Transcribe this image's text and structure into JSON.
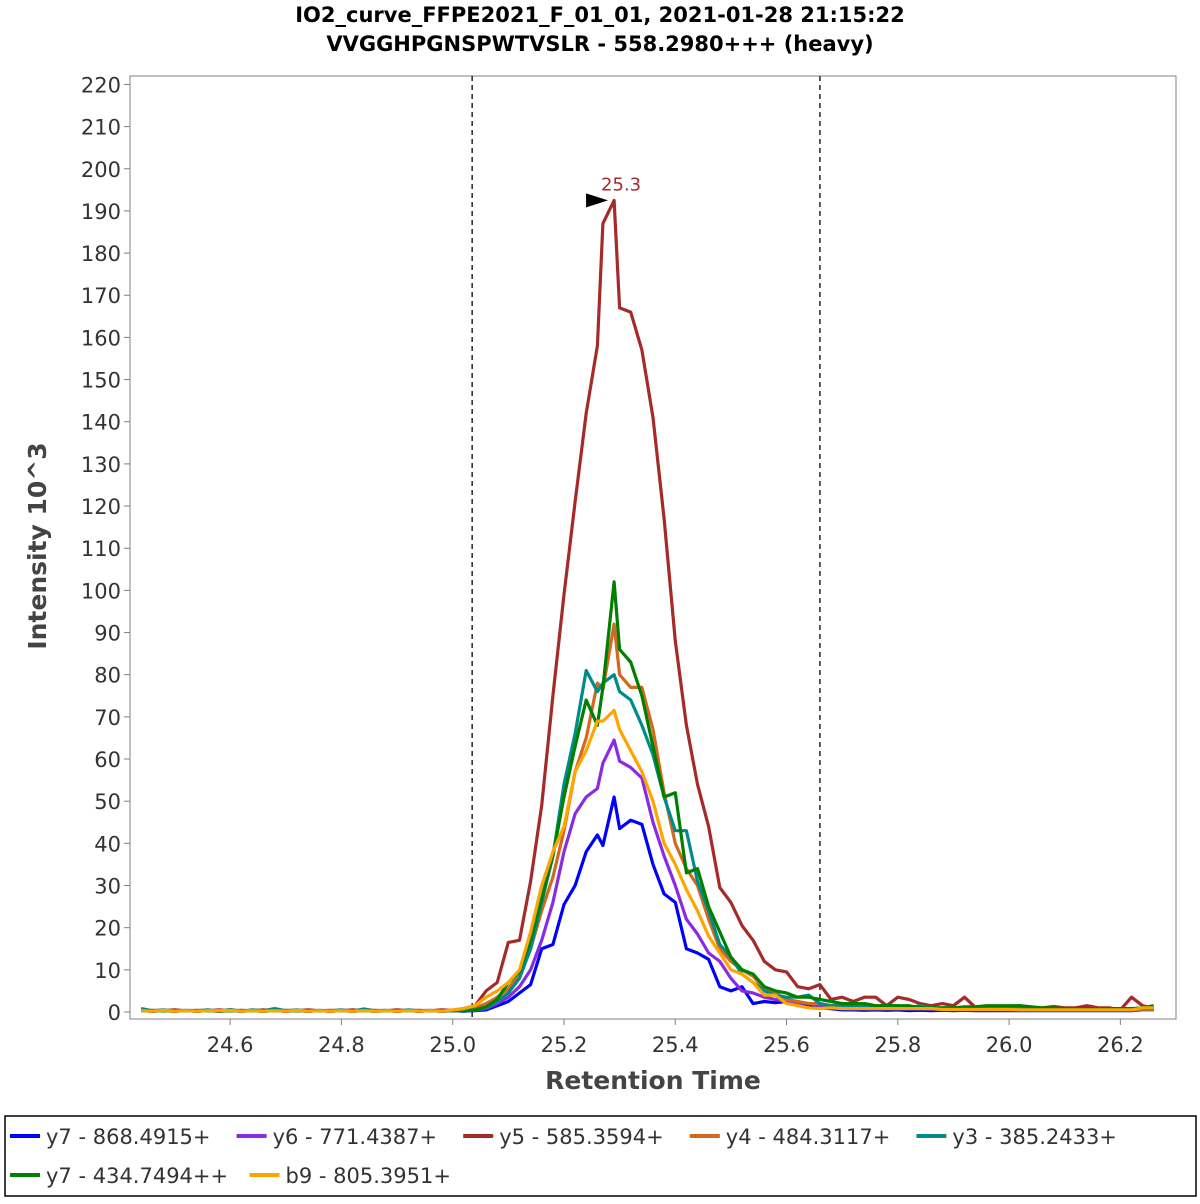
{
  "chart_data": {
    "type": "line",
    "title": "IO2_curve_FFPE2021_F_01_01, 2021-01-28 21:15:22",
    "subtitle": "VVGGHPGNSPWTVSLR - 558.2980+++ (heavy)",
    "xlabel": "Retention Time",
    "ylabel": "Intensity 10^3",
    "xlim": [
      24.42,
      26.3
    ],
    "ylim": [
      0,
      222
    ],
    "x_ticks": [
      "24.6",
      "24.8",
      "25.0",
      "25.2",
      "25.4",
      "25.6",
      "25.8",
      "26.0",
      "26.2"
    ],
    "y_ticks": [
      "0",
      "10",
      "20",
      "30",
      "40",
      "50",
      "60",
      "70",
      "80",
      "90",
      "100",
      "110",
      "120",
      "130",
      "140",
      "150",
      "160",
      "170",
      "180",
      "190",
      "200",
      "210",
      "220"
    ],
    "grid": false,
    "legend_position": "bottom",
    "integration_bounds": [
      25.035,
      25.66
    ],
    "peak_annotation": {
      "label": "25.3",
      "x": 25.29,
      "y": 192.5,
      "color": "#a52a2a"
    },
    "x": [
      24.44,
      24.46,
      24.48,
      24.5,
      24.52,
      24.54,
      24.56,
      24.58,
      24.6,
      24.62,
      24.64,
      24.66,
      24.68,
      24.7,
      24.72,
      24.74,
      24.76,
      24.78,
      24.8,
      24.82,
      24.84,
      24.86,
      24.88,
      24.9,
      24.92,
      24.94,
      24.96,
      24.98,
      25.0,
      25.02,
      25.04,
      25.06,
      25.08,
      25.1,
      25.12,
      25.14,
      25.16,
      25.18,
      25.2,
      25.22,
      25.24,
      25.26,
      25.27,
      25.29,
      25.3,
      25.32,
      25.34,
      25.36,
      25.38,
      25.4,
      25.42,
      25.44,
      25.46,
      25.48,
      25.5,
      25.52,
      25.54,
      25.56,
      25.58,
      25.6,
      25.62,
      25.64,
      25.66,
      25.68,
      25.7,
      25.72,
      25.74,
      25.76,
      25.78,
      25.8,
      25.82,
      25.84,
      25.86,
      25.88,
      25.9,
      25.92,
      25.94,
      25.96,
      25.98,
      26.0,
      26.02,
      26.04,
      26.06,
      26.08,
      26.1,
      26.12,
      26.14,
      26.16,
      26.18,
      26.2,
      26.22,
      26.24,
      26.26
    ],
    "series": [
      {
        "name": "y7 - 868.4915+",
        "color": "#0000ff",
        "values": [
          0.3,
          0.2,
          0.3,
          0.2,
          0.3,
          0.2,
          0.3,
          0.2,
          0.3,
          0.2,
          0.3,
          0.2,
          0.3,
          0.2,
          0.3,
          0.2,
          0.3,
          0.2,
          0.3,
          0.2,
          0.3,
          0.2,
          0.3,
          0.2,
          0.3,
          0.2,
          0.3,
          0.2,
          0.3,
          0.2,
          0.3,
          0.5,
          1.5,
          2.5,
          4.5,
          6.5,
          15,
          16,
          25.5,
          30,
          38,
          42,
          39.5,
          51,
          43.5,
          45.5,
          44.5,
          35,
          28,
          26,
          15,
          14,
          12.5,
          6,
          5,
          6,
          2,
          2.5,
          2.2,
          2.5,
          1.5,
          1.5,
          1,
          0.8,
          0.5,
          0.5,
          0.4,
          0.5,
          0.4,
          0.5,
          0.3,
          0.4,
          0.3,
          0.4,
          0.3,
          0.4,
          0.3,
          0.3,
          0.3,
          0.3,
          0.3,
          0.3,
          0.3,
          0.3,
          0.3,
          0.3,
          0.3,
          0.3,
          0.3,
          0.3,
          0.3,
          0.5,
          0.5
        ]
      },
      {
        "name": "y6 - 771.4387+",
        "color": "#8a2be2",
        "values": [
          0.3,
          0.2,
          0.3,
          0.2,
          0.3,
          0.2,
          0.3,
          0.2,
          0.3,
          0.2,
          0.3,
          0.2,
          0.3,
          0.2,
          0.3,
          0.2,
          0.3,
          0.2,
          0.3,
          0.2,
          0.3,
          0.2,
          0.3,
          0.2,
          0.3,
          0.2,
          0.3,
          0.2,
          0.3,
          0.2,
          0.4,
          0.8,
          2,
          3.5,
          6,
          10,
          17,
          26,
          38,
          47,
          51,
          53,
          59,
          64.5,
          59.5,
          58,
          55.5,
          45,
          37,
          30,
          22,
          18.5,
          14,
          12,
          8,
          5,
          4.5,
          3.5,
          3,
          2.5,
          2.2,
          2,
          1.5,
          1.5,
          1.2,
          1,
          1,
          1,
          1.2,
          1,
          1,
          1.2,
          1,
          0.8,
          0.8,
          1,
          0.8,
          0.8,
          0.8,
          0.8,
          0.6,
          0.6,
          0.6,
          0.6,
          0.5,
          0.5,
          0.5,
          0.5,
          0.5,
          0.5,
          0.5,
          0.6,
          0.5
        ]
      },
      {
        "name": "y5 - 585.3594+",
        "color": "#a52a2a",
        "values": [
          0.3,
          0.4,
          0.3,
          0.5,
          0.3,
          0.4,
          0.3,
          0.5,
          0.3,
          0.4,
          0.3,
          0.5,
          0.3,
          0.4,
          0.3,
          0.5,
          0.3,
          0.4,
          0.3,
          0.5,
          0.3,
          0.4,
          0.3,
          0.5,
          0.3,
          0.4,
          0.3,
          0.5,
          0.4,
          0.8,
          1.5,
          5,
          7,
          16.5,
          17,
          31,
          49,
          75,
          99,
          121,
          142,
          158,
          187,
          192.5,
          167,
          166,
          157,
          141,
          117,
          88,
          68,
          54,
          44,
          29.5,
          26,
          20.5,
          17,
          12,
          10,
          9.5,
          6,
          5.5,
          6.5,
          3,
          3.5,
          2.5,
          3.5,
          3.5,
          1.5,
          3.5,
          3,
          2,
          1.5,
          2,
          1.5,
          3.5,
          1,
          1.2,
          1.2,
          1.2,
          1.5,
          0.8,
          1,
          1.3,
          1,
          1,
          1.5,
          1,
          1,
          0.5,
          3.5,
          1.5,
          0.8
        ]
      },
      {
        "name": "y4 - 484.3117+",
        "color": "#d2691e",
        "values": [
          0.3,
          0.2,
          0.3,
          0.2,
          0.3,
          0.2,
          0.3,
          0.2,
          0.3,
          0.2,
          0.3,
          0.2,
          0.3,
          0.2,
          0.3,
          0.2,
          0.3,
          0.2,
          0.3,
          0.2,
          0.3,
          0.2,
          0.3,
          0.2,
          0.3,
          0.2,
          0.3,
          0.2,
          0.3,
          0.5,
          1,
          2,
          3.5,
          5.5,
          9,
          15,
          24,
          32,
          43,
          57,
          65,
          78,
          76.5,
          92,
          80,
          77,
          77,
          67,
          52,
          40,
          34,
          30,
          22,
          15,
          12,
          10,
          8.5,
          5.5,
          4.5,
          3,
          2.5,
          2,
          2,
          1.5,
          1.5,
          1.2,
          1.2,
          1,
          1,
          1,
          1,
          0.8,
          0.8,
          0.8,
          0.8,
          0.8,
          0.8,
          0.8,
          0.6,
          0.6,
          0.6,
          0.6,
          0.6,
          0.5,
          0.5,
          0.5,
          0.5,
          0.5,
          0.5,
          0.5,
          0.5,
          0.5,
          0.5
        ]
      },
      {
        "name": "y3 - 385.2433+",
        "color": "#008b8b",
        "values": [
          0.8,
          0.3,
          0.5,
          0.2,
          0.4,
          0.3,
          0.5,
          0.2,
          0.6,
          0.2,
          0.5,
          0.3,
          0.8,
          0.3,
          0.5,
          0.2,
          0.4,
          0.3,
          0.5,
          0.2,
          0.7,
          0.3,
          0.4,
          0.2,
          0.5,
          0.3,
          0.4,
          0.2,
          0.3,
          0.2,
          0.5,
          1,
          2.5,
          4.5,
          8,
          15,
          26,
          37,
          54,
          66,
          81,
          76,
          78,
          80,
          76,
          74,
          68,
          61,
          51,
          43,
          43,
          31,
          24,
          16,
          13,
          9,
          7,
          5,
          4,
          3.5,
          3.5,
          4,
          2,
          1.5,
          1.5,
          1.5,
          1.5,
          1.5,
          1.5,
          1.5,
          1,
          1.5,
          1,
          1,
          1,
          1,
          1,
          1,
          0.8,
          0.8,
          0.8,
          0.8,
          0.8,
          0.8,
          0.8,
          0.8,
          0.8,
          0.8,
          0.8,
          0.8,
          0.8,
          0.8,
          0.8
        ]
      },
      {
        "name": "y7 - 434.7494++",
        "color": "#008000",
        "values": [
          0.3,
          0.2,
          0.3,
          0.2,
          0.3,
          0.2,
          0.3,
          0.2,
          0.3,
          0.2,
          0.3,
          0.2,
          0.3,
          0.2,
          0.3,
          0.2,
          0.3,
          0.2,
          0.3,
          0.2,
          0.3,
          0.2,
          0.3,
          0.2,
          0.3,
          0.2,
          0.3,
          0.2,
          0.3,
          0.3,
          0.5,
          1.2,
          3,
          7,
          9.5,
          17,
          27,
          37,
          51,
          63,
          74,
          68,
          77,
          102,
          86,
          83,
          75,
          63,
          51,
          52,
          33,
          34,
          25,
          19,
          13,
          10,
          9,
          6,
          5,
          4.5,
          3.5,
          3.5,
          3,
          2.5,
          2,
          2,
          2,
          1.5,
          1.5,
          1.5,
          1.5,
          1,
          1,
          1,
          1,
          1.2,
          1.2,
          1.5,
          1.5,
          1.5,
          1.5,
          1.2,
          1,
          1,
          0.8,
          0.8,
          0.8,
          0.8,
          0.8,
          0.8,
          0.8,
          1,
          1.5
        ]
      },
      {
        "name": "b9 - 805.3951+",
        "color": "#ffa500",
        "values": [
          0.3,
          0.2,
          0.4,
          0.2,
          0.3,
          0.2,
          0.3,
          0.3,
          0.4,
          0.2,
          0.3,
          0.2,
          0.3,
          0.2,
          0.4,
          0.2,
          0.3,
          0.2,
          0.3,
          0.2,
          0.3,
          0.2,
          0.3,
          0.2,
          0.3,
          0.2,
          0.3,
          0.2,
          0.5,
          0.8,
          1.5,
          3.5,
          5,
          7,
          10,
          19,
          30,
          38,
          44,
          57,
          62,
          69,
          69,
          71.5,
          67,
          62,
          57,
          50,
          40,
          35,
          29,
          24,
          18,
          14,
          10,
          9,
          7,
          4,
          4,
          2,
          1.5,
          1,
          0.8,
          1,
          0.8,
          0.8,
          0.8,
          0.8,
          0.8,
          0.8,
          0.8,
          0.8,
          0.8,
          0.6,
          0.6,
          0.6,
          0.6,
          0.6,
          0.6,
          0.6,
          0.5,
          0.5,
          0.5,
          0.5,
          0.5,
          0.5,
          0.5,
          0.5,
          0.5,
          0.5,
          0.5,
          1,
          1
        ]
      }
    ]
  }
}
